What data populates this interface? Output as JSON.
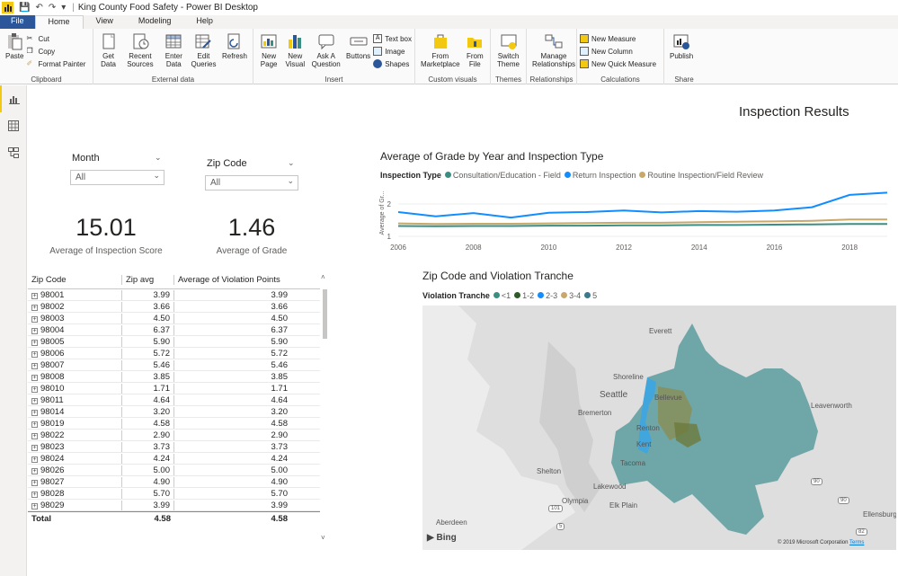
{
  "window": {
    "title": "King County Food Safety - Power BI Desktop"
  },
  "tabs": [
    {
      "label": "File"
    },
    {
      "label": "Home"
    },
    {
      "label": "View"
    },
    {
      "label": "Modeling"
    },
    {
      "label": "Help"
    }
  ],
  "ribbon": {
    "clipboard": {
      "paste": "Paste",
      "cut": "Cut",
      "copy": "Copy",
      "format_painter": "Format Painter",
      "group": "Clipboard"
    },
    "external": {
      "get_data": "Get Data",
      "recent_sources": "Recent Sources",
      "enter_data": "Enter Data",
      "edit_queries": "Edit Queries",
      "refresh": "Refresh",
      "group": "External data"
    },
    "insert": {
      "new_page": "New Page",
      "new_visual": "New Visual",
      "ask_question": "Ask A Question",
      "buttons": "Buttons",
      "text_box": "Text box",
      "image": "Image",
      "shapes": "Shapes",
      "group": "Insert"
    },
    "custom": {
      "from_marketplace": "From Marketplace",
      "from_file": "From File",
      "group": "Custom visuals"
    },
    "themes": {
      "switch_theme": "Switch Theme",
      "group": "Themes"
    },
    "relationships": {
      "manage": "Manage Relationships",
      "group": "Relationships"
    },
    "calculations": {
      "new_measure": "New Measure",
      "new_column": "New Column",
      "new_quick_measure": "New Quick Measure",
      "group": "Calculations"
    },
    "share": {
      "publish": "Publish",
      "group": "Share"
    }
  },
  "page_title": "Inspection Results",
  "slicers": {
    "month": {
      "label": "Month",
      "value": "All"
    },
    "zip": {
      "label": "Zip Code",
      "value": "All"
    }
  },
  "cards": [
    {
      "value": "15.01",
      "label": "Average of Inspection Score"
    },
    {
      "value": "1.46",
      "label": "Average of Grade"
    }
  ],
  "table": {
    "headers": [
      "Zip Code",
      "Zip avg",
      "Average of Violation Points"
    ],
    "rows": [
      [
        "98001",
        "3.99",
        "3.99"
      ],
      [
        "98002",
        "3.66",
        "3.66"
      ],
      [
        "98003",
        "4.50",
        "4.50"
      ],
      [
        "98004",
        "6.37",
        "6.37"
      ],
      [
        "98005",
        "5.90",
        "5.90"
      ],
      [
        "98006",
        "5.72",
        "5.72"
      ],
      [
        "98007",
        "5.46",
        "5.46"
      ],
      [
        "98008",
        "3.85",
        "3.85"
      ],
      [
        "98010",
        "1.71",
        "1.71"
      ],
      [
        "98011",
        "4.64",
        "4.64"
      ],
      [
        "98014",
        "3.20",
        "3.20"
      ],
      [
        "98019",
        "4.58",
        "4.58"
      ],
      [
        "98022",
        "2.90",
        "2.90"
      ],
      [
        "98023",
        "3.73",
        "3.73"
      ],
      [
        "98024",
        "4.24",
        "4.24"
      ],
      [
        "98026",
        "5.00",
        "5.00"
      ],
      [
        "98027",
        "4.90",
        "4.90"
      ],
      [
        "98028",
        "5.70",
        "5.70"
      ],
      [
        "98029",
        "3.99",
        "3.99"
      ]
    ],
    "total": [
      "Total",
      "4.58",
      "4.58"
    ]
  },
  "chart_data": [
    {
      "type": "line",
      "title": "Average of Grade by Year and Inspection Type",
      "legend_title": "Inspection Type",
      "ylabel": "Average of Gr...",
      "ylim": [
        1,
        2.5
      ],
      "yticks": [
        "1",
        "2"
      ],
      "x": [
        2006,
        2007,
        2008,
        2009,
        2010,
        2011,
        2012,
        2013,
        2014,
        2015,
        2016,
        2017,
        2018,
        2019
      ],
      "xticks": [
        "2006",
        "2008",
        "2010",
        "2012",
        "2014",
        "2016",
        "2018"
      ],
      "series": [
        {
          "name": "Consultation/Education - Field",
          "color": "#3a8f82",
          "values": [
            1.32,
            1.31,
            1.32,
            1.32,
            1.33,
            1.33,
            1.34,
            1.34,
            1.35,
            1.35,
            1.36,
            1.37,
            1.38,
            1.38
          ]
        },
        {
          "name": "Return Inspection",
          "color": "#118dff",
          "values": [
            1.75,
            1.62,
            1.72,
            1.58,
            1.73,
            1.75,
            1.8,
            1.74,
            1.78,
            1.76,
            1.8,
            1.9,
            2.28,
            2.35
          ]
        },
        {
          "name": "Routine Inspection/Field Review",
          "color": "#c9a86b",
          "values": [
            1.4,
            1.38,
            1.39,
            1.39,
            1.4,
            1.41,
            1.42,
            1.42,
            1.44,
            1.45,
            1.46,
            1.48,
            1.52,
            1.52
          ]
        }
      ]
    }
  ],
  "map": {
    "title": "Zip Code and Violation Tranche",
    "legend_title": "Violation Tranche",
    "legend": [
      {
        "name": "<1",
        "color": "#3a8f82"
      },
      {
        "name": "1-2",
        "color": "#2d5a27"
      },
      {
        "name": "2-3",
        "color": "#118dff"
      },
      {
        "name": "3-4",
        "color": "#c9a86b"
      },
      {
        "name": "5",
        "color": "#3a7a8a"
      }
    ],
    "places": [
      "Everett",
      "Shoreline",
      "Seattle",
      "Bellevue",
      "Bremerton",
      "Renton",
      "Kent",
      "Tacoma",
      "Shelton",
      "Lakewood",
      "Olympia",
      "Elk Plain",
      "Aberdeen",
      "Leavenworth",
      "Ellensburg"
    ],
    "road_shields": [
      "90",
      "90",
      "82",
      "5",
      "101"
    ],
    "attribution": "Bing",
    "copyright": "© 2019 Microsoft Corporation",
    "terms": "Terms"
  }
}
